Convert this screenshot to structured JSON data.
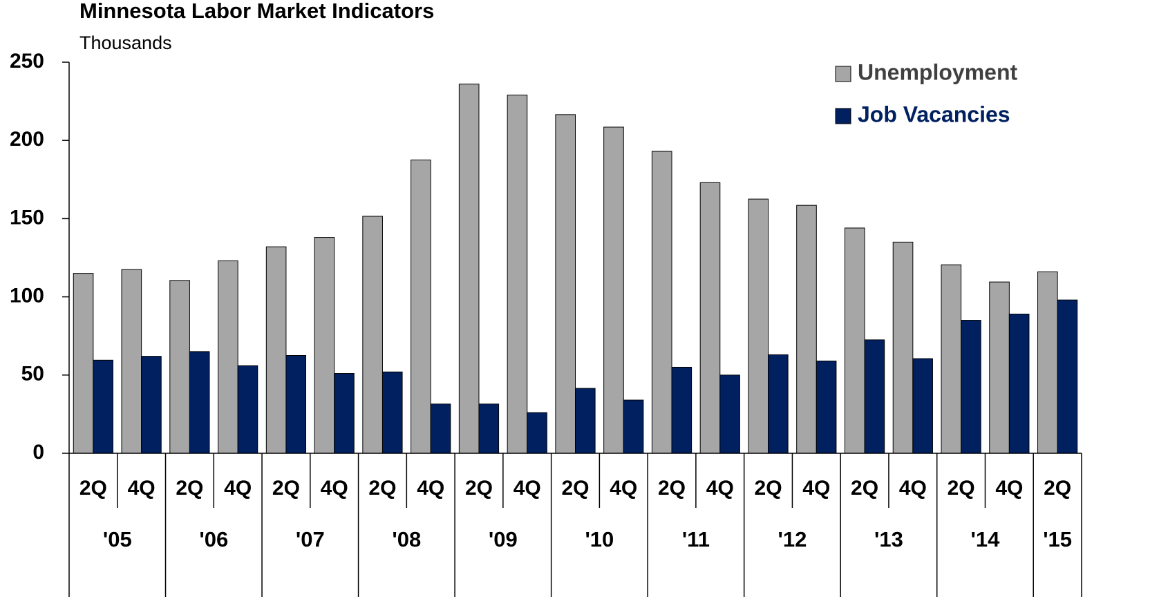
{
  "chart_data": {
    "type": "bar",
    "title": "Minnesota Labor Market Indicators",
    "subtitle": "Thousands",
    "categories": [
      "2Q",
      "4Q",
      "2Q",
      "4Q",
      "2Q",
      "4Q",
      "2Q",
      "4Q",
      "2Q",
      "4Q",
      "2Q",
      "4Q",
      "2Q",
      "4Q",
      "2Q",
      "4Q",
      "2Q",
      "4Q",
      "2Q",
      "4Q",
      "2Q"
    ],
    "year_groups": [
      {
        "label": "'05",
        "span": 2
      },
      {
        "label": "'06",
        "span": 2
      },
      {
        "label": "'07",
        "span": 2
      },
      {
        "label": "'08",
        "span": 2
      },
      {
        "label": "'09",
        "span": 2
      },
      {
        "label": "'10",
        "span": 2
      },
      {
        "label": "'11",
        "span": 2
      },
      {
        "label": "'12",
        "span": 2
      },
      {
        "label": "'13",
        "span": 2
      },
      {
        "label": "'14",
        "span": 2
      },
      {
        "label": "'15",
        "span": 1
      }
    ],
    "series": [
      {
        "name": "Unemployment",
        "color": "#a6a6a6",
        "text_color": "#404040",
        "values": [
          115,
          117.5,
          110.5,
          123,
          132,
          138,
          151.5,
          187.5,
          236,
          229,
          216.5,
          208.5,
          193,
          173,
          162.5,
          158.5,
          144,
          135,
          120.5,
          109.5,
          116
        ]
      },
      {
        "name": "Job Vacancies",
        "color": "#002060",
        "text_color": "#002060",
        "values": [
          59.5,
          62,
          65,
          56,
          62.5,
          51,
          52,
          31.5,
          31.5,
          26,
          41.5,
          34,
          55,
          50,
          63,
          59,
          72.5,
          60.5,
          85,
          89,
          98
        ]
      }
    ],
    "ylim": [
      0,
      250
    ],
    "yticks": [
      0,
      50,
      100,
      150,
      200,
      250
    ],
    "grid": false,
    "legend": "top-right"
  }
}
